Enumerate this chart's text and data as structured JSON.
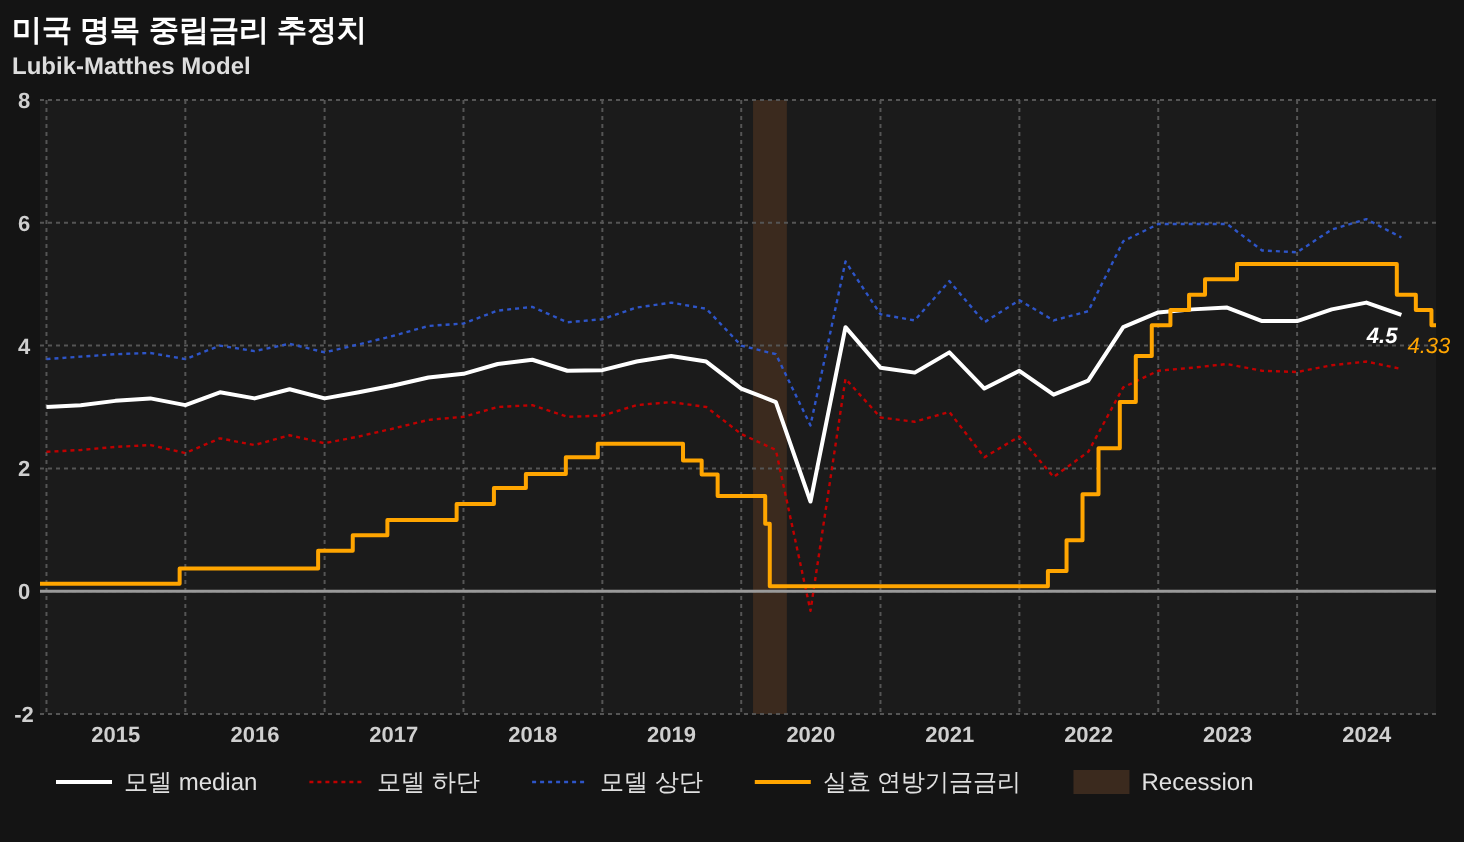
{
  "chart_data": {
    "type": "line",
    "title": "미국 명목 중립금리 추정치",
    "subtitle": "Lubik-Matthes Model",
    "x": [
      "2015-01",
      "2015-04",
      "2015-07",
      "2015-10",
      "2016-01",
      "2016-04",
      "2016-07",
      "2016-10",
      "2017-01",
      "2017-04",
      "2017-07",
      "2017-10",
      "2018-01",
      "2018-04",
      "2018-07",
      "2018-10",
      "2019-01",
      "2019-04",
      "2019-07",
      "2019-10",
      "2020-01",
      "2020-04",
      "2020-07",
      "2020-10",
      "2021-01",
      "2021-04",
      "2021-07",
      "2021-10",
      "2022-01",
      "2022-04",
      "2022-07",
      "2022-10",
      "2023-01",
      "2023-04",
      "2023-07",
      "2023-10",
      "2024-01",
      "2024-04",
      "2024-07",
      "2024-10"
    ],
    "series": [
      {
        "name": "모델 median",
        "color": "#ffffff",
        "line_style": "solid",
        "values": [
          3.0,
          3.03,
          3.1,
          3.14,
          3.03,
          3.24,
          3.14,
          3.29,
          3.14,
          3.24,
          3.35,
          3.48,
          3.54,
          3.7,
          3.77,
          3.59,
          3.6,
          3.74,
          3.83,
          3.74,
          3.3,
          3.08,
          1.46,
          4.3,
          3.64,
          3.56,
          3.89,
          3.3,
          3.59,
          3.2,
          3.43,
          4.3,
          4.54,
          4.59,
          4.62,
          4.4,
          4.4,
          4.59,
          4.7,
          4.5
        ],
        "value_labels": [
          null,
          null,
          null,
          null,
          null,
          null,
          null,
          null,
          null,
          null,
          null,
          null,
          null,
          null,
          null,
          null,
          null,
          null,
          null,
          null,
          null,
          null,
          null,
          null,
          null,
          null,
          null,
          null,
          null,
          null,
          null,
          null,
          null,
          null,
          null,
          null,
          null,
          null,
          null,
          "4.5"
        ]
      },
      {
        "name": "모델 하단",
        "color": "#c00000",
        "line_style": "dotted",
        "values": [
          2.27,
          2.3,
          2.35,
          2.38,
          2.25,
          2.49,
          2.38,
          2.54,
          2.41,
          2.52,
          2.65,
          2.79,
          2.84,
          3.0,
          3.03,
          2.84,
          2.86,
          3.03,
          3.08,
          3.0,
          2.56,
          2.3,
          -0.32,
          3.46,
          2.83,
          2.76,
          2.92,
          2.18,
          2.52,
          1.86,
          2.27,
          3.32,
          3.59,
          3.64,
          3.7,
          3.59,
          3.57,
          3.68,
          3.74,
          3.62
        ]
      },
      {
        "name": "모델 상단",
        "color": "#2e55c8",
        "line_style": "dotted",
        "values": [
          3.78,
          3.82,
          3.86,
          3.88,
          3.78,
          4.0,
          3.91,
          4.03,
          3.89,
          4.02,
          4.16,
          4.32,
          4.36,
          4.57,
          4.63,
          4.38,
          4.43,
          4.62,
          4.7,
          4.6,
          4.0,
          3.86,
          2.7,
          5.37,
          4.51,
          4.41,
          5.05,
          4.38,
          4.74,
          4.41,
          4.56,
          5.7,
          5.98,
          5.98,
          5.98,
          5.55,
          5.52,
          5.89,
          6.06,
          5.76
        ]
      },
      {
        "name": "실효 연방기금금리",
        "color": "#ffa500",
        "type": "step",
        "line_style": "solid",
        "x": [
          "2014-12-15",
          "2015-12-17",
          "2016-12-15",
          "2017-03-16",
          "2017-06-15",
          "2017-12-14",
          "2018-03-22",
          "2018-06-14",
          "2018-09-27",
          "2018-12-20",
          "2019-08-01",
          "2019-09-19",
          "2019-10-31",
          "2020-03-04",
          "2020-03-16",
          "2022-03-17",
          "2022-05-05",
          "2022-06-16",
          "2022-07-28",
          "2022-09-22",
          "2022-11-03",
          "2022-12-15",
          "2023-02-02",
          "2023-03-23",
          "2023-05-04",
          "2023-07-27",
          "2024-09-19",
          "2024-11-08",
          "2024-12-19"
        ],
        "values": [
          0.12,
          0.37,
          0.66,
          0.91,
          1.16,
          1.42,
          1.68,
          1.91,
          2.18,
          2.4,
          2.13,
          1.9,
          1.55,
          1.1,
          0.08,
          0.33,
          0.83,
          1.58,
          2.33,
          3.08,
          3.83,
          4.33,
          4.58,
          4.83,
          5.08,
          5.33,
          4.83,
          4.58,
          4.33
        ],
        "value_labels": [
          null,
          null,
          null,
          null,
          null,
          null,
          null,
          null,
          null,
          null,
          null,
          null,
          null,
          null,
          null,
          null,
          null,
          null,
          null,
          null,
          null,
          null,
          null,
          null,
          null,
          null,
          null,
          null,
          "4.33"
        ]
      }
    ],
    "xlim": [
      "2014-12-15",
      "2024-12-31"
    ],
    "xticks": [
      {
        "value": "2015-01-01",
        "label": null
      },
      {
        "value": "2015-07-02",
        "label": "2015"
      },
      {
        "value": "2016-01-01",
        "label": null
      },
      {
        "value": "2016-07-02",
        "label": "2016"
      },
      {
        "value": "2017-01-01",
        "label": null
      },
      {
        "value": "2017-07-02",
        "label": "2017"
      },
      {
        "value": "2018-01-01",
        "label": null
      },
      {
        "value": "2018-07-02",
        "label": "2018"
      },
      {
        "value": "2019-01-01",
        "label": null
      },
      {
        "value": "2019-07-02",
        "label": "2019"
      },
      {
        "value": "2020-01-01",
        "label": null
      },
      {
        "value": "2020-07-02",
        "label": "2020"
      },
      {
        "value": "2021-01-01",
        "label": null
      },
      {
        "value": "2021-07-02",
        "label": "2021"
      },
      {
        "value": "2022-01-01",
        "label": null
      },
      {
        "value": "2022-07-02",
        "label": "2022"
      },
      {
        "value": "2023-01-01",
        "label": null
      },
      {
        "value": "2023-07-02",
        "label": "2023"
      },
      {
        "value": "2024-01-01",
        "label": null
      },
      {
        "value": "2024-07-02",
        "label": "2024"
      }
    ],
    "ylim": [
      -2,
      8
    ],
    "yticks": [
      -2,
      0,
      2,
      4,
      6,
      8
    ],
    "ref_lines": [
      {
        "axis": "y",
        "value": 0,
        "label": null,
        "color": "#9a9a9a"
      }
    ],
    "bands": [
      {
        "axis": "x",
        "from": "2020-02-01",
        "to": "2020-04-30",
        "label": "Recession",
        "color": "#3b2a1e"
      }
    ],
    "grid": true,
    "legend": "bottom",
    "marker": "none"
  }
}
